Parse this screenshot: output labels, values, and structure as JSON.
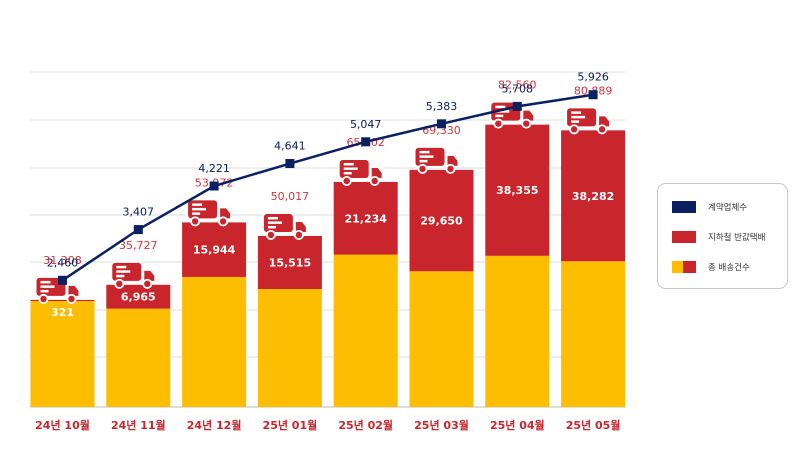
{
  "chart_data": {
    "type": "bar",
    "categories": [
      "24년 10월",
      "24년 11월",
      "24년 12월",
      "25년 01월",
      "25년 02월",
      "25년 03월",
      "25년 04월",
      "25년 05월"
    ],
    "series": [
      {
        "name": "계약업체수",
        "type": "line",
        "values": [
          2460,
          3407,
          4221,
          4641,
          5047,
          5383,
          5708,
          5926
        ],
        "color": "#0a2060"
      },
      {
        "name": "지하철 반값택배",
        "type": "bar",
        "values": [
          321,
          6965,
          15944,
          15515,
          21234,
          29650,
          38355,
          38282
        ],
        "color": "#c8252c"
      },
      {
        "name": "총 배송건수",
        "type": "bar",
        "values": [
          31308,
          35727,
          53972,
          50017,
          65802,
          69330,
          82560,
          80889
        ],
        "color": "#fdbd00"
      }
    ],
    "bar_ylim": [
      0,
      100000
    ],
    "line_ylim": [
      0,
      6500
    ],
    "grid": true,
    "legend_position": "right",
    "colors": {
      "line": "#0a2060",
      "red": "#c8252c",
      "yellow": "#fdbd00",
      "red_label": "#d3343b",
      "axis_label": "#c8252c"
    },
    "icon": "delivery-truck-icon"
  }
}
